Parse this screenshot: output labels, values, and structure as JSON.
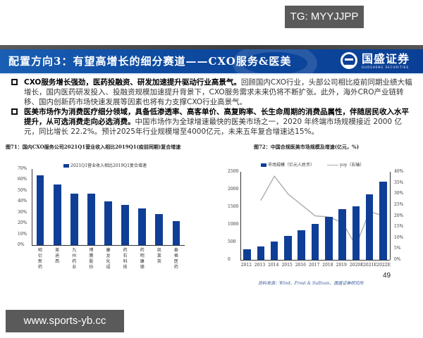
{
  "watermarks": {
    "top": "TG: MYYJJPP",
    "bottom": "www.sports-yb.cc"
  },
  "header": {
    "title": "配置方向3：有望高增长的细分赛道——CXO服务&医美",
    "logo_cn": "国盛证券",
    "logo_en": "GUOSHENG SECURITIES",
    "colors": {
      "band": "#0d4aa0",
      "strip": "#4a4a4a"
    }
  },
  "bullets": [
    {
      "lead": "CXO服务增长强劲，医药投融资、研发加速提升驱动行业高景气。",
      "rest": "回顾国内CXO行业，头部公司相比疫前同期业绩大幅增长，国内医药研发投入、投融资规模加速提升背景下，CXO服务需求未来仍将不断扩张。此外，海外CRO产业链转移、国内创新药市场快速发展等因素也将有力支撑CXO行业高景气。"
    },
    {
      "lead": "医美市场作为消费医疗细分领域，具备低渗透率、高客单价、高复购率、长生命周期的消费品属性，伴随居民收入水平提升，从可选消费走向必选消费。",
      "rest": "中国市场作为全球增速最快的医美市场之一，2020 年终端市场规模接近 2000 亿元，同比增长 22.2%。预计2025年行业规模增至4000亿元，未来五年复合增速达15%。"
    }
  ],
  "page_number": "49",
  "source": "资料来源：Wind、Frost & Sullivan、国盛证券研究所",
  "chart_data": [
    {
      "type": "bar",
      "title": "图71：国内CXO服务公司2021Q1营业收入相比2019Q1(疫前同期)复合增速",
      "legend": [
        "2021Q1营业收入相比2019Q1复合增速"
      ],
      "categories": [
        "昭衍新药",
        "美迪西",
        "九州药业",
        "博腾股份",
        "康龙化成",
        "药石科技",
        "药明康德",
        "凯莱英",
        "泰格医药"
      ],
      "values": [
        64,
        56,
        47,
        47,
        40,
        37,
        34,
        28.5,
        22
      ],
      "y_ticks": [
        "70%",
        "60%",
        "50%",
        "40%",
        "30%",
        "20%",
        "10%",
        "0%"
      ],
      "ylim": [
        0,
        70
      ],
      "xlabel": "",
      "ylabel": "",
      "grid": false,
      "legend_position": "top",
      "color": "#0f3e96"
    },
    {
      "type": "bar+line",
      "title": "图72：中国合规医美市场规模及增速(亿元，%)",
      "legend": [
        "市场规模（亿元人民币）",
        "yoy（右轴）"
      ],
      "categories": [
        "2012",
        "2013",
        "2014",
        "2015",
        "2016",
        "2017",
        "2018",
        "2019",
        "2020E",
        "2021E",
        "2022E"
      ],
      "series": [
        {
          "name": "市场规模（亿元人民币）",
          "type": "bar",
          "axis": "left",
          "values": [
            310,
            390,
            530,
            690,
            850,
            1030,
            1230,
            1440,
            1530,
            1860,
            2230
          ]
        },
        {
          "name": "yoy（右轴）",
          "type": "line",
          "axis": "right",
          "values": [
            null,
            27,
            38,
            30,
            25,
            20,
            19.5,
            17,
            6.5,
            22,
            20
          ]
        }
      ],
      "y_left_ticks": [
        "2500",
        "2000",
        "1500",
        "1000",
        "500",
        "0"
      ],
      "y_right_ticks": [
        "40%",
        "35%",
        "30%",
        "25%",
        "20%",
        "15%",
        "10%",
        "5%",
        "0%"
      ],
      "ylim_left": [
        0,
        2500
      ],
      "ylim_right": [
        0,
        40
      ],
      "grid": false,
      "legend_position": "top",
      "colors": {
        "bar": "#0f3e96",
        "line": "#b0b0b0"
      }
    }
  ]
}
